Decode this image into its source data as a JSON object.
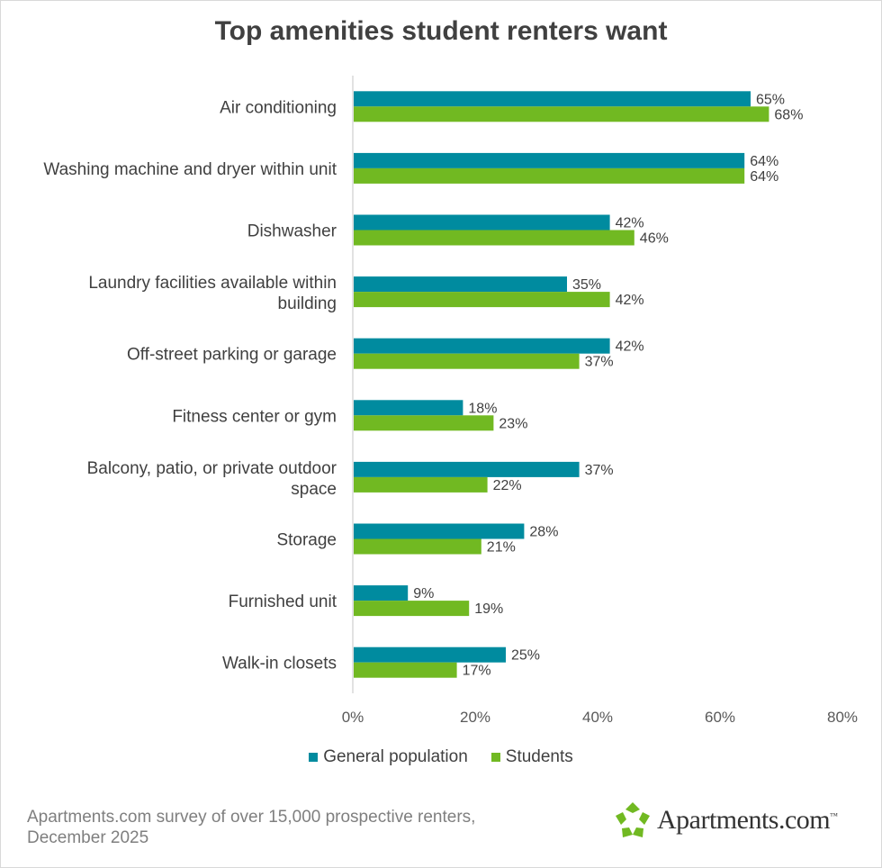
{
  "chart_data": {
    "type": "bar",
    "orientation": "horizontal",
    "title": "Top amenities student renters want",
    "categories": [
      "Air conditioning",
      "Washing machine and dryer within unit",
      "Dishwasher",
      "Laundry facilities available within building",
      "Off-street parking or garage",
      "Fitness center or gym",
      "Balcony, patio, or private outdoor space",
      "Storage",
      "Furnished unit",
      "Walk-in closets"
    ],
    "series": [
      {
        "name": "General population",
        "color": "#008b9f",
        "values": [
          65,
          64,
          42,
          35,
          42,
          18,
          37,
          28,
          9,
          25
        ],
        "labels": [
          "65%",
          "64%",
          "42%",
          "35%",
          "42%",
          "18%",
          "37%",
          "28%",
          "9%",
          "25%"
        ]
      },
      {
        "name": "Students",
        "color": "#71b922",
        "values": [
          68,
          64,
          46,
          42,
          37,
          23,
          22,
          21,
          19,
          17
        ],
        "labels": [
          "68%",
          "64%",
          "46%",
          "42%",
          "37%",
          "23%",
          "22%",
          "21%",
          "19%",
          "17%"
        ]
      }
    ],
    "xlim": [
      0,
      80
    ],
    "xticks": [
      0,
      20,
      40,
      60,
      80
    ],
    "xtick_labels": [
      "0%",
      "20%",
      "40%",
      "60%",
      "80%"
    ],
    "grid": false,
    "legend_position": "bottom"
  },
  "legend": {
    "general": "General population",
    "students": "Students"
  },
  "footnote": {
    "line1": "Apartments.com survey of over 15,000 prospective renters,",
    "line2": "December 2025"
  },
  "logo": {
    "text": "Apartments.com",
    "tm": "™",
    "icon": "apartments-logo-icon",
    "color": "#71b922"
  }
}
